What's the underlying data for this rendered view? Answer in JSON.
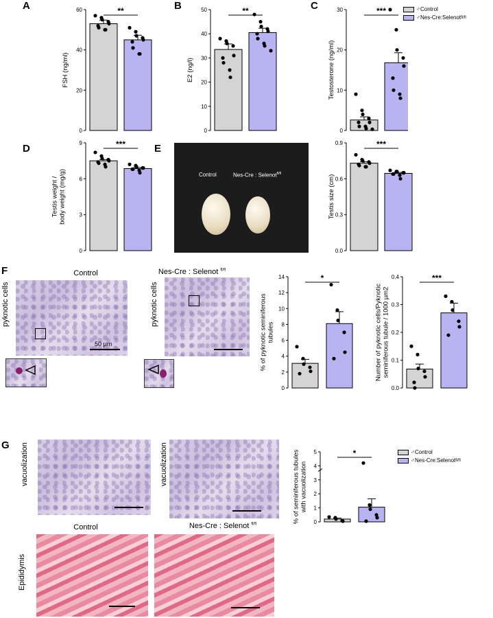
{
  "panels": {
    "A": "A",
    "B": "B",
    "C": "C",
    "D": "D",
    "E": "E",
    "F": "F",
    "G": "G"
  },
  "colors": {
    "control": "#d4d4d4",
    "knockout": "#b8b4f2"
  },
  "legend": {
    "control": "♂Control",
    "knockout_main": "♂Nes-Cre:Selenot",
    "knockout_sup": "fl/fl"
  },
  "photos": {
    "E": {
      "label_control": "Control",
      "label_ko_main": "Nes-Cre : Selenot",
      "label_ko_sup": "fl/fl"
    },
    "F": {
      "title_control": "Control",
      "title_ko_main": "Nes-Cre : Selenot",
      "title_ko_sup": "fl/fl",
      "side_label_1": "pyknotic cells",
      "side_label_2": "pyknotic cells",
      "scale_label": "50 µm"
    },
    "G": {
      "side_label_1": "vacuolization",
      "side_label_2": "vacuolization",
      "epi_title_control": "Control",
      "epi_title_ko_main": "Nes-Cre : Selenot",
      "epi_title_ko_sup": "fl/fl",
      "epi_side": "Epididymis"
    }
  },
  "chart_data": [
    {
      "id": "A",
      "type": "bar",
      "ylabel": "FSH (ng/ml)",
      "ylim": [
        0,
        60
      ],
      "yticks": [
        "0",
        "20",
        "40",
        "60"
      ],
      "significance": "**",
      "categories": [
        "Control",
        "Nes-Cre:Selenot fl/fl"
      ],
      "values": [
        53,
        45
      ],
      "errors": [
        1.8,
        2.3
      ],
      "points": [
        [
          57,
          56,
          55,
          54,
          53,
          52,
          51,
          50,
          50
        ],
        [
          51,
          49,
          47,
          46,
          45,
          44,
          41,
          38,
          38
        ]
      ]
    },
    {
      "id": "B",
      "type": "bar",
      "ylabel": "E2 (ng/l)",
      "ylim": [
        0,
        50
      ],
      "yticks": [
        "0",
        "10",
        "20",
        "30",
        "40",
        "50"
      ],
      "significance": "**",
      "categories": [
        "Control",
        "Nes-Cre:Selenot fl/fl"
      ],
      "values": [
        33.5,
        40.5
      ],
      "errors": [
        2.3,
        1.8
      ],
      "points": [
        [
          38,
          37,
          36,
          35,
          31,
          30,
          28,
          25,
          22
        ],
        [
          48,
          45,
          43,
          42,
          41,
          40,
          38,
          36,
          35,
          33
        ]
      ]
    },
    {
      "id": "C",
      "type": "bar",
      "ylabel": "Testosterone (ng/ml)",
      "ylim": [
        0,
        30
      ],
      "yticks": [
        "0",
        "10",
        "20",
        "30"
      ],
      "significance": "***",
      "categories": [
        "Control",
        "Nes-Cre:Selenot fl/fl"
      ],
      "values": [
        2.6,
        16.8
      ],
      "errors": [
        0.8,
        2.5
      ],
      "points": [
        [
          9,
          5,
          4,
          3,
          2,
          2,
          1,
          1,
          0.5,
          0.3
        ],
        [
          30,
          25,
          20,
          18,
          16,
          13,
          10,
          9,
          8
        ]
      ]
    },
    {
      "id": "D",
      "type": "bar",
      "ylabel": "Testis weight / body weight (mg/g)",
      "ylabel_lines": [
        "Testis weight /",
        "body weight (mg/g)"
      ],
      "ylim": [
        0,
        9
      ],
      "yticks": [
        "0",
        "3",
        "6",
        "9"
      ],
      "significance": "***",
      "categories": [
        "Control",
        "Nes-Cre:Selenot fl/fl"
      ],
      "values": [
        7.5,
        6.85
      ],
      "errors": [
        0.1,
        0.1
      ],
      "points": [
        [
          8.2,
          7.9,
          7.7,
          7.6,
          7.5,
          7.4,
          7.3,
          7.2,
          7.0
        ],
        [
          7.2,
          7.1,
          7.0,
          6.9,
          6.9,
          6.8,
          6.8,
          6.7,
          6.5
        ]
      ]
    },
    {
      "id": "E",
      "type": "bar",
      "ylabel": "Testis size (cm)",
      "ylim": [
        0,
        0.9
      ],
      "yticks": [
        "0.0",
        "0.3",
        "0.6",
        "0.9"
      ],
      "significance": "***",
      "categories": [
        "Control",
        "Nes-Cre:Selenot fl/fl"
      ],
      "values": [
        0.73,
        0.645
      ],
      "errors": [
        0.012,
        0.008
      ],
      "points": [
        [
          0.8,
          0.76,
          0.75,
          0.74,
          0.73,
          0.72,
          0.71,
          0.7,
          0.7
        ],
        [
          0.67,
          0.66,
          0.66,
          0.65,
          0.65,
          0.64,
          0.64,
          0.63,
          0.6
        ]
      ]
    },
    {
      "id": "F1",
      "type": "bar",
      "ylabel": "% of pyknotic seminiferous tubules",
      "ylabel_lines": [
        "% of pyknotic seminiferous",
        "tubules"
      ],
      "ylim": [
        0,
        14
      ],
      "yticks": [
        "0",
        "2",
        "4",
        "6",
        "8",
        "10",
        "12",
        "14"
      ],
      "significance": "*",
      "categories": [
        "Control",
        "Nes-Cre:Selenot fl/fl"
      ],
      "values": [
        3.1,
        8.1
      ],
      "errors": [
        0.5,
        1.5
      ],
      "points": [
        [
          5.2,
          3.7,
          3.0,
          2.6,
          2.1,
          1.8
        ],
        [
          13,
          9.8,
          8.5,
          7.0,
          4.5,
          3.7
        ]
      ]
    },
    {
      "id": "F2",
      "type": "bar",
      "ylabel": "Number of pyknotic cells/Pyknotic seminiferous tubule / 1000 µm2",
      "ylabel_lines": [
        "Number of pyknotic cells/Pyknotic",
        "seminiferous tubule / 1000 µm2"
      ],
      "ylim": [
        0,
        0.4
      ],
      "yticks": [
        "0.0",
        "0.1",
        "0.2",
        "0.3",
        "0.4"
      ],
      "significance": "***",
      "categories": [
        "Control",
        "Nes-Cre:Selenot fl/fl"
      ],
      "values": [
        0.068,
        0.27
      ],
      "errors": [
        0.018,
        0.035
      ],
      "points": [
        [
          0.15,
          0.12,
          0.07,
          0.06,
          0.04,
          0.02,
          0.0
        ],
        [
          0.33,
          0.31,
          0.28,
          0.24,
          0.22,
          0.19
        ]
      ]
    },
    {
      "id": "G",
      "type": "bar",
      "ylabel": "% of seminiferous tubules with vacuolization",
      "ylabel_lines": [
        "% of seminiferous tubules",
        "with vacuolization"
      ],
      "ylim": [
        0,
        5
      ],
      "yticks": [
        "0",
        "1",
        "2",
        "3",
        "4",
        "5"
      ],
      "broken_axis": true,
      "significance": "*",
      "categories": [
        "Control",
        "Nes-Cre:Selenot fl/fl"
      ],
      "values": [
        0.2,
        1.05
      ],
      "errors": [
        0.07,
        0.6
      ],
      "points": [
        [
          0.35,
          0.3,
          0.2,
          0.1,
          0.05
        ],
        [
          4.2,
          1.2,
          0.9,
          0.5,
          0.3,
          0.05
        ]
      ]
    }
  ]
}
